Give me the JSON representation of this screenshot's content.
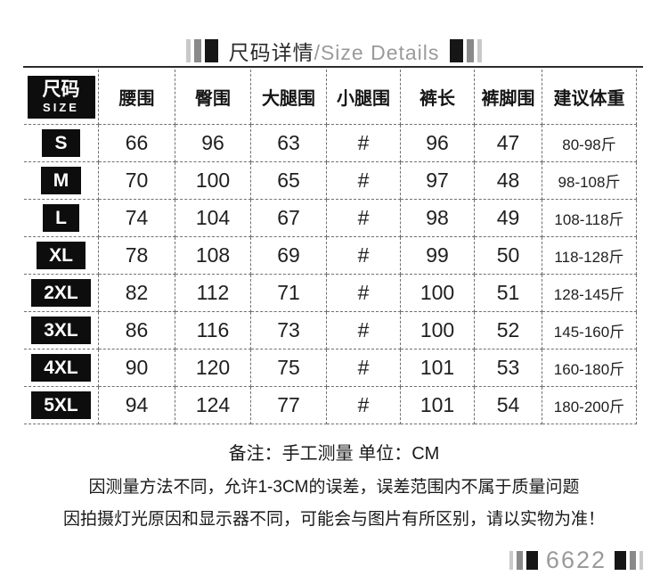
{
  "title": {
    "cn": "尺码详情",
    "en": "/Size Details"
  },
  "table": {
    "size_header": {
      "cn": "尺码",
      "en": "SIZE"
    },
    "columns": [
      "腰围",
      "臀围",
      "大腿围",
      "小腿围",
      "裤长",
      "裤脚围",
      "建议体重"
    ],
    "rows": [
      {
        "size": "S",
        "values": [
          "66",
          "96",
          "63",
          "#",
          "96",
          "47",
          "80-98斤"
        ]
      },
      {
        "size": "M",
        "values": [
          "70",
          "100",
          "65",
          "#",
          "97",
          "48",
          "98-108斤"
        ]
      },
      {
        "size": "L",
        "values": [
          "74",
          "104",
          "67",
          "#",
          "98",
          "49",
          "108-118斤"
        ]
      },
      {
        "size": "XL",
        "values": [
          "78",
          "108",
          "69",
          "#",
          "99",
          "50",
          "118-128斤"
        ]
      },
      {
        "size": "2XL",
        "values": [
          "82",
          "112",
          "71",
          "#",
          "100",
          "51",
          "128-145斤"
        ]
      },
      {
        "size": "3XL",
        "values": [
          "86",
          "116",
          "73",
          "#",
          "100",
          "52",
          "145-160斤"
        ]
      },
      {
        "size": "4XL",
        "values": [
          "90",
          "120",
          "75",
          "#",
          "101",
          "53",
          "160-180斤"
        ]
      },
      {
        "size": "5XL",
        "values": [
          "94",
          "124",
          "77",
          "#",
          "101",
          "54",
          "180-200斤"
        ]
      }
    ]
  },
  "notes": {
    "remark": "备注：手工测量 单位：CM",
    "line1": "因测量方法不同，允许1-3CM的误差，误差范围内不属于质量问题",
    "line2": "因拍摄灯光原因和显示器不同，可能会与图片有所区别，请以实物为准！"
  },
  "footer": {
    "code": "6622"
  },
  "colors": {
    "text_dark": "#2b2b2b",
    "text_gray": "#9a9a9a",
    "bar_black": "#161616",
    "bar_gray": "#8a8a8a",
    "bar_light": "#c9c9c9",
    "size_badge_bg": "#0d0d0d",
    "dash_border": "#707070"
  }
}
